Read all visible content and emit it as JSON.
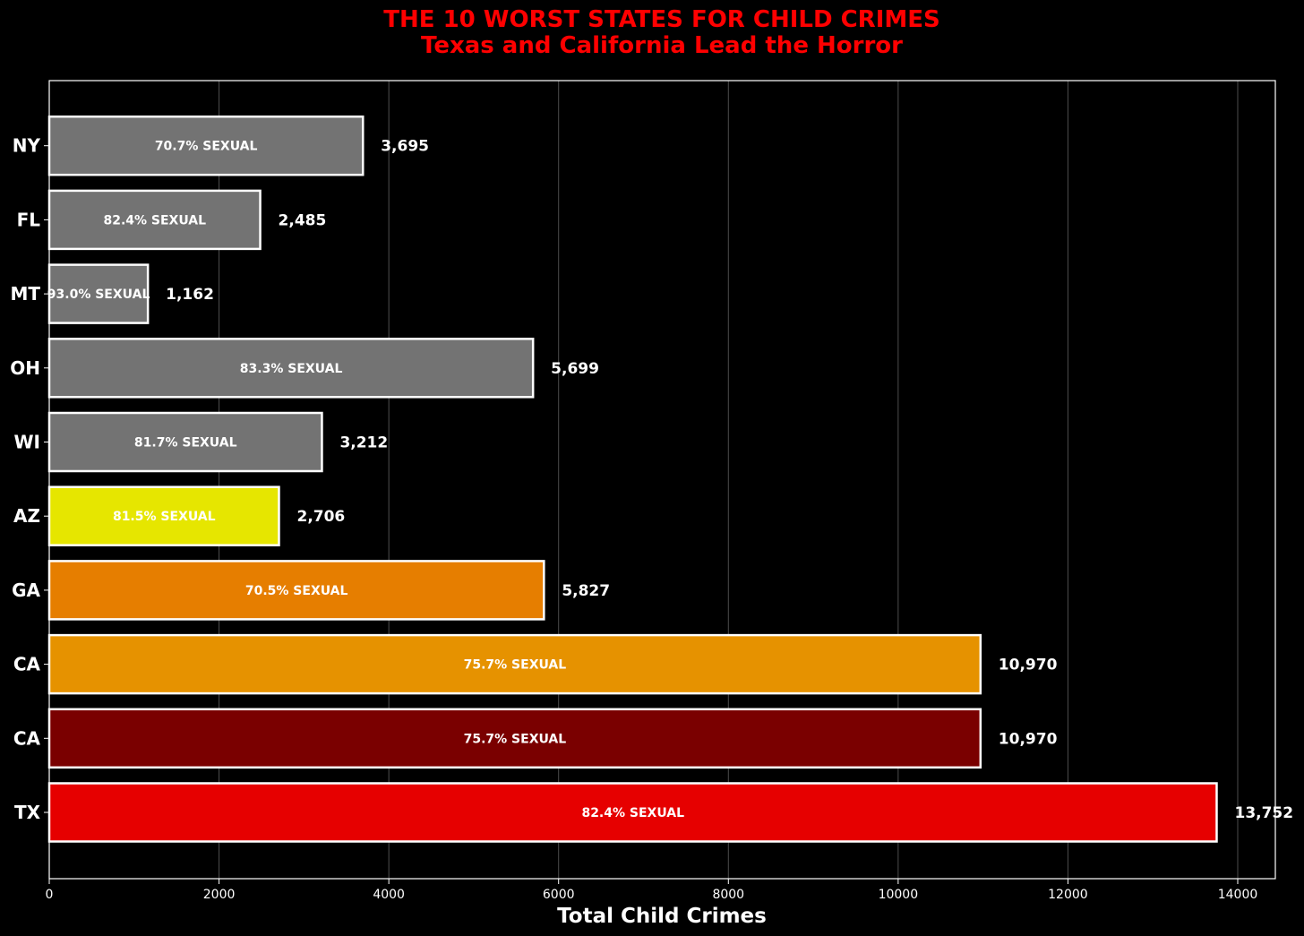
{
  "chart_data": {
    "type": "bar",
    "orientation": "horizontal",
    "title": "THE 10 WORST STATES FOR CHILD CRIMES",
    "subtitle": "Texas and California Lead the Horror",
    "xlabel": "Total Child Crimes",
    "ylabel": "",
    "xlim": [
      0,
      14450
    ],
    "xticks": [
      0,
      2000,
      4000,
      6000,
      8000,
      10000,
      12000,
      14000
    ],
    "grid": "vertical",
    "categories": [
      "TX",
      "CA",
      "CA",
      "GA",
      "AZ",
      "WI",
      "OH",
      "MT",
      "FL",
      "NY"
    ],
    "values": [
      13752,
      10970,
      10970,
      5827,
      2706,
      3212,
      5699,
      1162,
      2485,
      3695
    ],
    "value_labels": [
      "13,752",
      "10,970",
      "10,970",
      "5,827",
      "2,706",
      "3,212",
      "5,699",
      "1,162",
      "2,485",
      "3,695"
    ],
    "inner_labels": [
      "82.4% SEXUAL",
      "75.7% SEXUAL",
      "75.7% SEXUAL",
      "70.5% SEXUAL",
      "81.5% SEXUAL",
      "81.7% SEXUAL",
      "83.3% SEXUAL",
      "93.0% SEXUAL",
      "82.4% SEXUAL",
      "70.7% SEXUAL"
    ],
    "colors": [
      "#e60000",
      "#7a0000",
      "#e69200",
      "#e67e00",
      "#e6e600",
      "#737373",
      "#737373",
      "#737373",
      "#737373",
      "#737373"
    ],
    "title_color": "#ff0000",
    "background": "#000000",
    "bar_edge_color": "#ffffff"
  }
}
